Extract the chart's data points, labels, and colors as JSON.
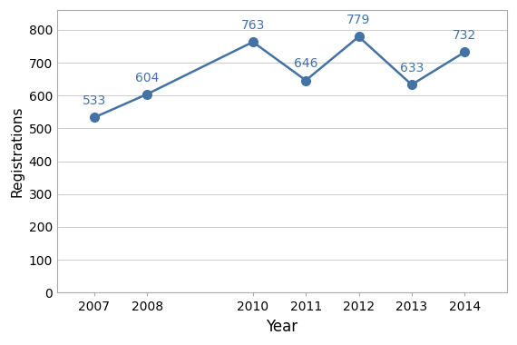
{
  "years": [
    2007,
    2008,
    2010,
    2011,
    2012,
    2013,
    2014
  ],
  "values": [
    533,
    604,
    763,
    646,
    779,
    633,
    732
  ],
  "line_color": "#4472a4",
  "marker_color": "#4472a4",
  "marker_style": "o",
  "marker_size": 7,
  "line_width": 1.8,
  "xlabel": "Year",
  "ylabel": "Registrations",
  "xlabel_fontsize": 12,
  "ylabel_fontsize": 11,
  "tick_fontsize": 10,
  "annotation_fontsize": 10,
  "annotation_color": "#4472a4",
  "ylim": [
    0,
    860
  ],
  "yticks": [
    0,
    100,
    200,
    300,
    400,
    500,
    600,
    700,
    800
  ],
  "grid_color": "#d0d0d0",
  "grid_linewidth": 0.8,
  "bg_color": "#ffffff",
  "plot_bg_color": "#ffffff",
  "spine_color": "#aaaaaa"
}
